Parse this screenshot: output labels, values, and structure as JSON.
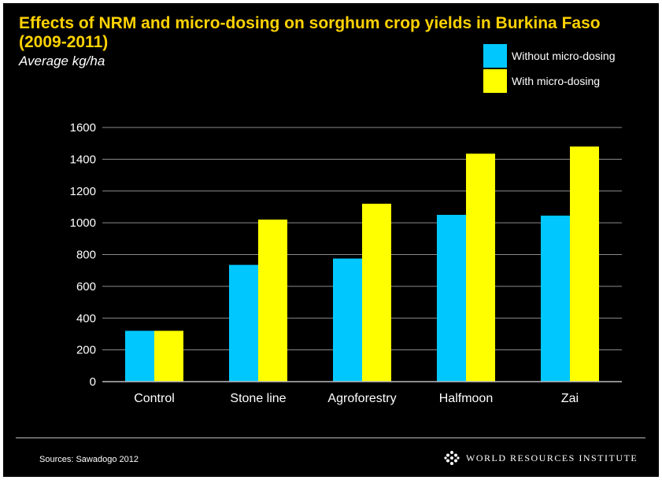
{
  "chart_data": {
    "type": "bar",
    "title": "Effects of NRM and micro-dosing on sorghum crop yields in Burkina Faso (2009-2011)",
    "subtitle": "Average kg/ha",
    "categories": [
      "Control",
      "Stone line",
      "Agroforestry",
      "Halfmoon",
      "Zai"
    ],
    "series": [
      {
        "name": "Without micro-dosing",
        "color": "#00c8ff",
        "values": [
          320,
          735,
          775,
          1050,
          1045
        ]
      },
      {
        "name": "With micro-dosing",
        "color": "#ffff00",
        "values": [
          320,
          1020,
          1120,
          1435,
          1480
        ]
      }
    ],
    "yticks": [
      0,
      200,
      400,
      600,
      800,
      1000,
      1200,
      1400,
      1600
    ],
    "ylim": [
      0,
      1600
    ],
    "grid": true,
    "legend_position": "top-right"
  },
  "footer": {
    "source": "Sources: Sawadogo 2012",
    "logo_text": "WORLD RESOURCES INSTITUTE"
  }
}
